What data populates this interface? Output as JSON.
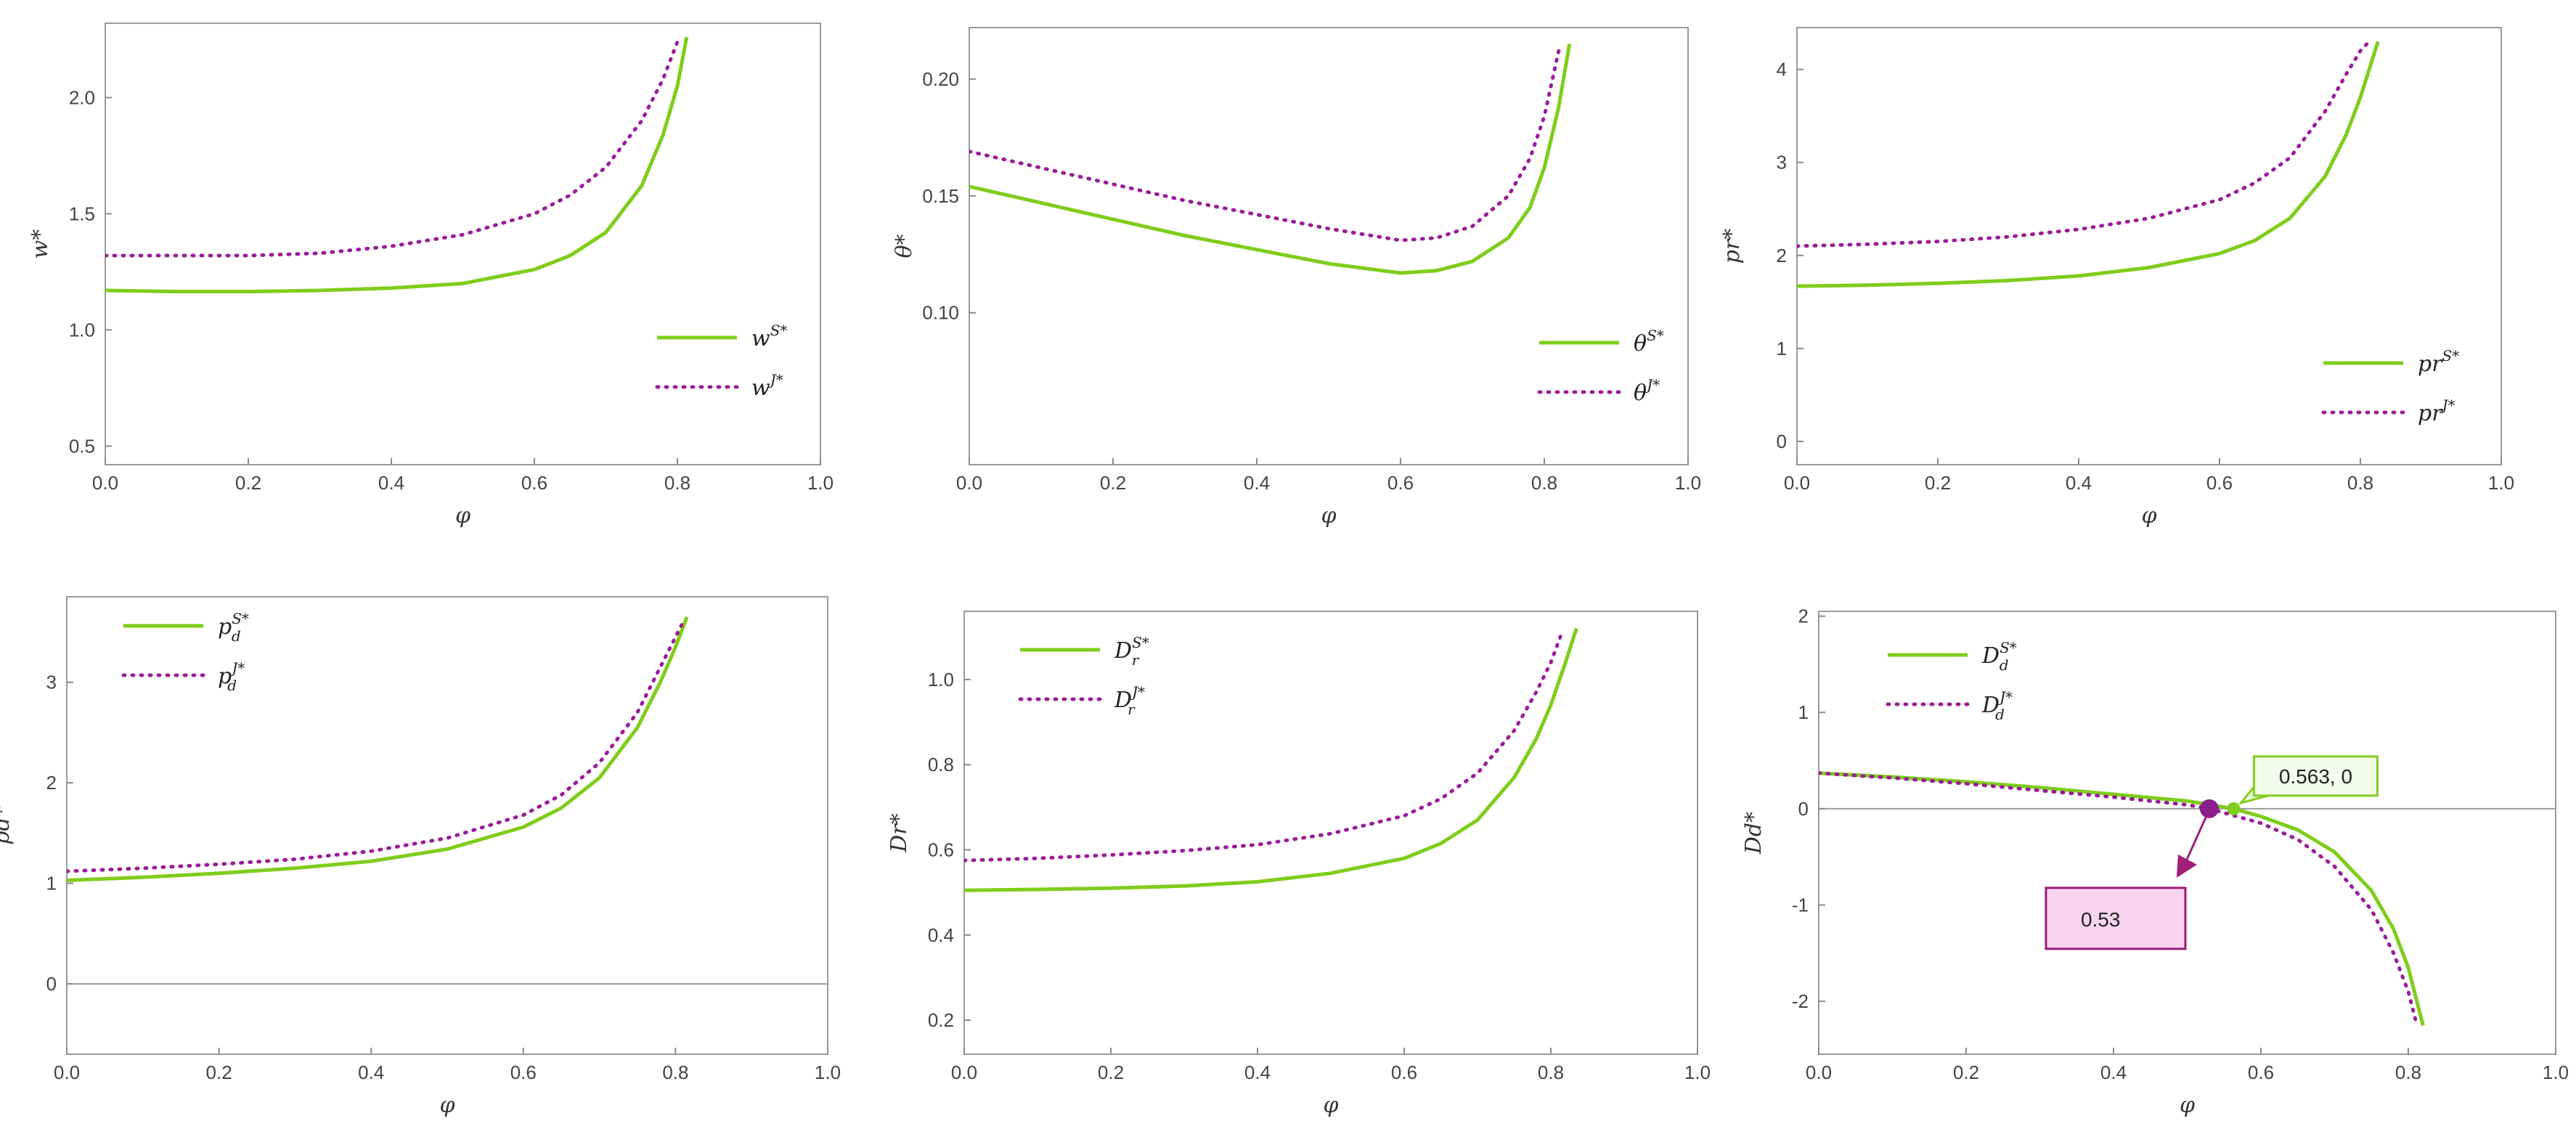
{
  "colors": {
    "sym": "#7fcd1c",
    "jnt": "#9b1c9b",
    "axis": "#8a8a8a",
    "zero": "#9a9a9a",
    "frame": "#9a9a9a"
  },
  "chart_data": [
    {
      "type": "line",
      "xlabel": "φ",
      "ylabel": "w*",
      "xlim": [
        0,
        1
      ],
      "ylim": [
        0.42,
        2.32
      ],
      "xticks": [
        "0.0",
        "0.2",
        "0.4",
        "0.6",
        "0.8",
        "1.0"
      ],
      "yticks": [
        "0.5",
        "1.0",
        "1.5",
        "2.0"
      ],
      "legend_position": "right-middle",
      "zero_line": false,
      "series": [
        {
          "name": "w",
          "sup": "S*",
          "sub": "",
          "style": "solid",
          "x": [
            0,
            0.1,
            0.2,
            0.3,
            0.4,
            0.5,
            0.6,
            0.65,
            0.7,
            0.75,
            0.78,
            0.8,
            0.813
          ],
          "y": [
            1.17,
            1.165,
            1.165,
            1.17,
            1.18,
            1.2,
            1.26,
            1.32,
            1.42,
            1.62,
            1.84,
            2.05,
            2.26
          ]
        },
        {
          "name": "w",
          "sup": "J*",
          "sub": "",
          "style": "dotted",
          "x": [
            0,
            0.1,
            0.2,
            0.3,
            0.4,
            0.5,
            0.6,
            0.65,
            0.7,
            0.75,
            0.78,
            0.8
          ],
          "y": [
            1.32,
            1.32,
            1.32,
            1.33,
            1.36,
            1.41,
            1.5,
            1.58,
            1.7,
            1.9,
            2.08,
            2.24
          ]
        }
      ]
    },
    {
      "type": "line",
      "xlabel": "φ",
      "ylabel": "θ*",
      "xlim": [
        0,
        1
      ],
      "ylim": [
        0.035,
        0.222
      ],
      "xticks": [
        "0.0",
        "0.2",
        "0.4",
        "0.6",
        "0.8",
        "1.0"
      ],
      "yticks": [
        "0.10",
        "0.15",
        "0.20"
      ],
      "legend_position": "right-middle",
      "zero_line": false,
      "series": [
        {
          "name": "θ",
          "sup": "S*",
          "sub": "",
          "style": "solid",
          "x": [
            0,
            0.1,
            0.2,
            0.3,
            0.4,
            0.5,
            0.6,
            0.65,
            0.7,
            0.75,
            0.78,
            0.8,
            0.82,
            0.835
          ],
          "y": [
            0.154,
            0.147,
            0.14,
            0.133,
            0.127,
            0.121,
            0.117,
            0.118,
            0.122,
            0.132,
            0.145,
            0.162,
            0.188,
            0.215
          ]
        },
        {
          "name": "θ",
          "sup": "J*",
          "sub": "",
          "style": "dotted",
          "x": [
            0,
            0.1,
            0.2,
            0.3,
            0.4,
            0.5,
            0.6,
            0.65,
            0.7,
            0.75,
            0.78,
            0.8,
            0.82
          ],
          "y": [
            0.169,
            0.162,
            0.155,
            0.148,
            0.142,
            0.136,
            0.131,
            0.132,
            0.137,
            0.15,
            0.166,
            0.184,
            0.212
          ]
        }
      ]
    },
    {
      "type": "line",
      "xlabel": "φ",
      "ylabel": "pr*",
      "xlim": [
        0,
        1
      ],
      "ylim": [
        -0.25,
        4.45
      ],
      "xticks": [
        "0.0",
        "0.2",
        "0.4",
        "0.6",
        "0.8",
        "1.0"
      ],
      "yticks": [
        "0",
        "1",
        "2",
        "3",
        "4"
      ],
      "legend_position": "right-middle",
      "zero_line": false,
      "series": [
        {
          "name": "pr",
          "sup": "S*",
          "sub": "",
          "style": "solid",
          "x": [
            0,
            0.1,
            0.2,
            0.3,
            0.4,
            0.5,
            0.6,
            0.65,
            0.7,
            0.75,
            0.78,
            0.8,
            0.825
          ],
          "y": [
            1.67,
            1.68,
            1.7,
            1.73,
            1.78,
            1.87,
            2.02,
            2.16,
            2.4,
            2.85,
            3.3,
            3.7,
            4.3
          ]
        },
        {
          "name": "pr",
          "sup": "J*",
          "sub": "",
          "style": "dotted",
          "x": [
            0,
            0.1,
            0.2,
            0.3,
            0.4,
            0.5,
            0.6,
            0.65,
            0.7,
            0.75,
            0.78,
            0.8,
            0.815
          ],
          "y": [
            2.1,
            2.12,
            2.15,
            2.2,
            2.28,
            2.4,
            2.6,
            2.78,
            3.05,
            3.55,
            3.95,
            4.2,
            4.32
          ]
        }
      ]
    },
    {
      "type": "line",
      "xlabel": "φ",
      "ylabel": "pd*",
      "xlim": [
        0,
        1
      ],
      "ylim": [
        -0.7,
        3.85
      ],
      "xticks": [
        "0.0",
        "0.2",
        "0.4",
        "0.6",
        "0.8",
        "1.0"
      ],
      "yticks": [
        "0",
        "1",
        "2",
        "3"
      ],
      "legend_position": "top-left",
      "zero_line": true,
      "series": [
        {
          "name": "p",
          "sup": "S*",
          "sub": "d",
          "style": "solid",
          "x": [
            0,
            0.1,
            0.2,
            0.3,
            0.4,
            0.5,
            0.6,
            0.65,
            0.7,
            0.75,
            0.78,
            0.8,
            0.815
          ],
          "y": [
            1.03,
            1.06,
            1.1,
            1.15,
            1.22,
            1.34,
            1.56,
            1.75,
            2.05,
            2.55,
            3.0,
            3.35,
            3.65
          ]
        },
        {
          "name": "p",
          "sup": "J*",
          "sub": "d",
          "style": "dotted",
          "x": [
            0,
            0.1,
            0.2,
            0.3,
            0.4,
            0.5,
            0.6,
            0.65,
            0.7,
            0.75,
            0.78,
            0.8,
            0.81
          ],
          "y": [
            1.12,
            1.15,
            1.19,
            1.24,
            1.32,
            1.45,
            1.68,
            1.88,
            2.2,
            2.7,
            3.15,
            3.45,
            3.6
          ]
        }
      ]
    },
    {
      "type": "line",
      "xlabel": "φ",
      "ylabel": "Dr*",
      "xlim": [
        0,
        1
      ],
      "ylim": [
        0.12,
        1.16
      ],
      "xticks": [
        "0.0",
        "0.2",
        "0.4",
        "0.6",
        "0.8",
        "1.0"
      ],
      "yticks": [
        "0.2",
        "0.4",
        "0.6",
        "0.8",
        "1.0"
      ],
      "legend_position": "top-left",
      "zero_line": false,
      "series": [
        {
          "name": "D",
          "sup": "S*",
          "sub": "r",
          "style": "solid",
          "x": [
            0,
            0.1,
            0.2,
            0.3,
            0.4,
            0.5,
            0.6,
            0.65,
            0.7,
            0.75,
            0.78,
            0.8,
            0.82,
            0.835
          ],
          "y": [
            0.505,
            0.507,
            0.51,
            0.515,
            0.525,
            0.545,
            0.58,
            0.615,
            0.67,
            0.77,
            0.86,
            0.94,
            1.04,
            1.12
          ]
        },
        {
          "name": "D",
          "sup": "J*",
          "sub": "r",
          "style": "dotted",
          "x": [
            0,
            0.1,
            0.2,
            0.3,
            0.4,
            0.5,
            0.6,
            0.65,
            0.7,
            0.75,
            0.78,
            0.8,
            0.815
          ],
          "y": [
            0.575,
            0.58,
            0.588,
            0.598,
            0.612,
            0.638,
            0.68,
            0.72,
            0.78,
            0.88,
            0.97,
            1.04,
            1.11
          ]
        }
      ]
    },
    {
      "type": "line",
      "xlabel": "φ",
      "ylabel": "Dd*",
      "xlim": [
        0,
        1
      ],
      "ylim": [
        -2.55,
        2.05
      ],
      "xticks": [
        "0.0",
        "0.2",
        "0.4",
        "0.6",
        "0.8",
        "1.0"
      ],
      "yticks": [
        "-2",
        "-1",
        "0",
        "1",
        "2"
      ],
      "legend_position": "top-left",
      "zero_line": true,
      "series": [
        {
          "name": "D",
          "sup": "S*",
          "sub": "d",
          "style": "solid",
          "x": [
            0,
            0.1,
            0.2,
            0.3,
            0.4,
            0.5,
            0.563,
            0.6,
            0.65,
            0.7,
            0.75,
            0.78,
            0.8,
            0.82
          ],
          "y": [
            0.37,
            0.33,
            0.28,
            0.22,
            0.15,
            0.08,
            0.0,
            -0.08,
            -0.22,
            -0.45,
            -0.85,
            -1.25,
            -1.65,
            -2.25
          ]
        },
        {
          "name": "D",
          "sup": "J*",
          "sub": "d",
          "style": "dotted",
          "x": [
            0,
            0.1,
            0.2,
            0.3,
            0.4,
            0.5,
            0.53,
            0.6,
            0.65,
            0.7,
            0.75,
            0.78,
            0.8,
            0.81
          ],
          "y": [
            0.37,
            0.32,
            0.26,
            0.19,
            0.12,
            0.04,
            0.0,
            -0.15,
            -0.32,
            -0.6,
            -1.05,
            -1.5,
            -1.9,
            -2.2
          ]
        }
      ],
      "annotations": [
        {
          "label": "0.563, 0",
          "x": 0.563,
          "y": 0,
          "color": "sym"
        },
        {
          "label": "0.53",
          "x": 0.53,
          "y": 0,
          "color": "jnt"
        }
      ]
    }
  ]
}
